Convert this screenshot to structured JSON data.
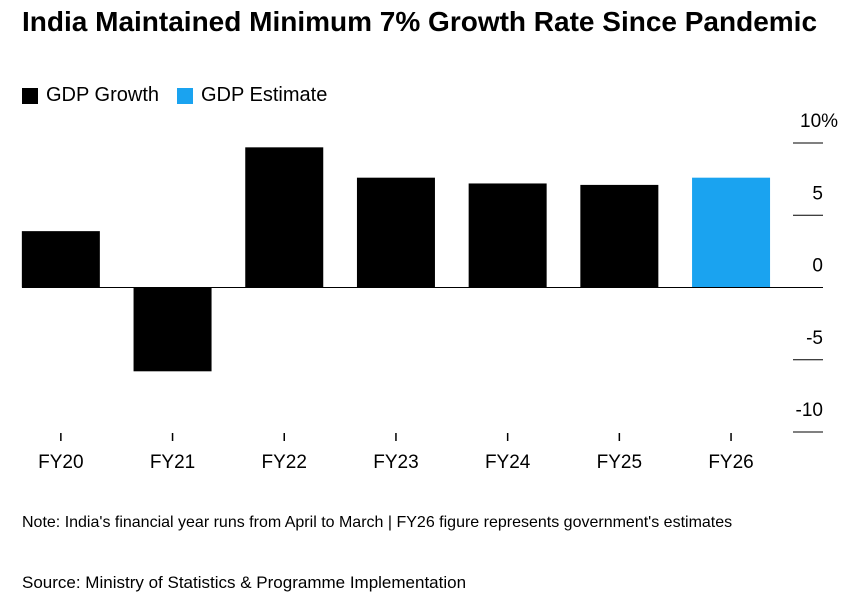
{
  "chart_data": {
    "type": "bar",
    "title": "India Maintained Minimum 7% Growth Rate Since Pandemic",
    "categories": [
      "FY20",
      "FY21",
      "FY22",
      "FY23",
      "FY24",
      "FY25",
      "FY26"
    ],
    "series": [
      {
        "name": "GDP Growth",
        "color": "#000000",
        "values": [
          3.9,
          -5.8,
          9.7,
          7.6,
          7.2,
          7.1,
          null
        ]
      },
      {
        "name": "GDP Estimate",
        "color": "#1aa3f0",
        "values": [
          null,
          null,
          null,
          null,
          null,
          null,
          7.6
        ]
      }
    ],
    "ylim": [
      -10,
      10
    ],
    "yticks": [
      {
        "value": 10,
        "label": "10%"
      },
      5,
      0,
      -5,
      -10
    ],
    "note": "Note: India's financial year runs from April to March | FY26 figure represents government's estimates",
    "source": "Source: Ministry of Statistics & Programme Implementation"
  }
}
